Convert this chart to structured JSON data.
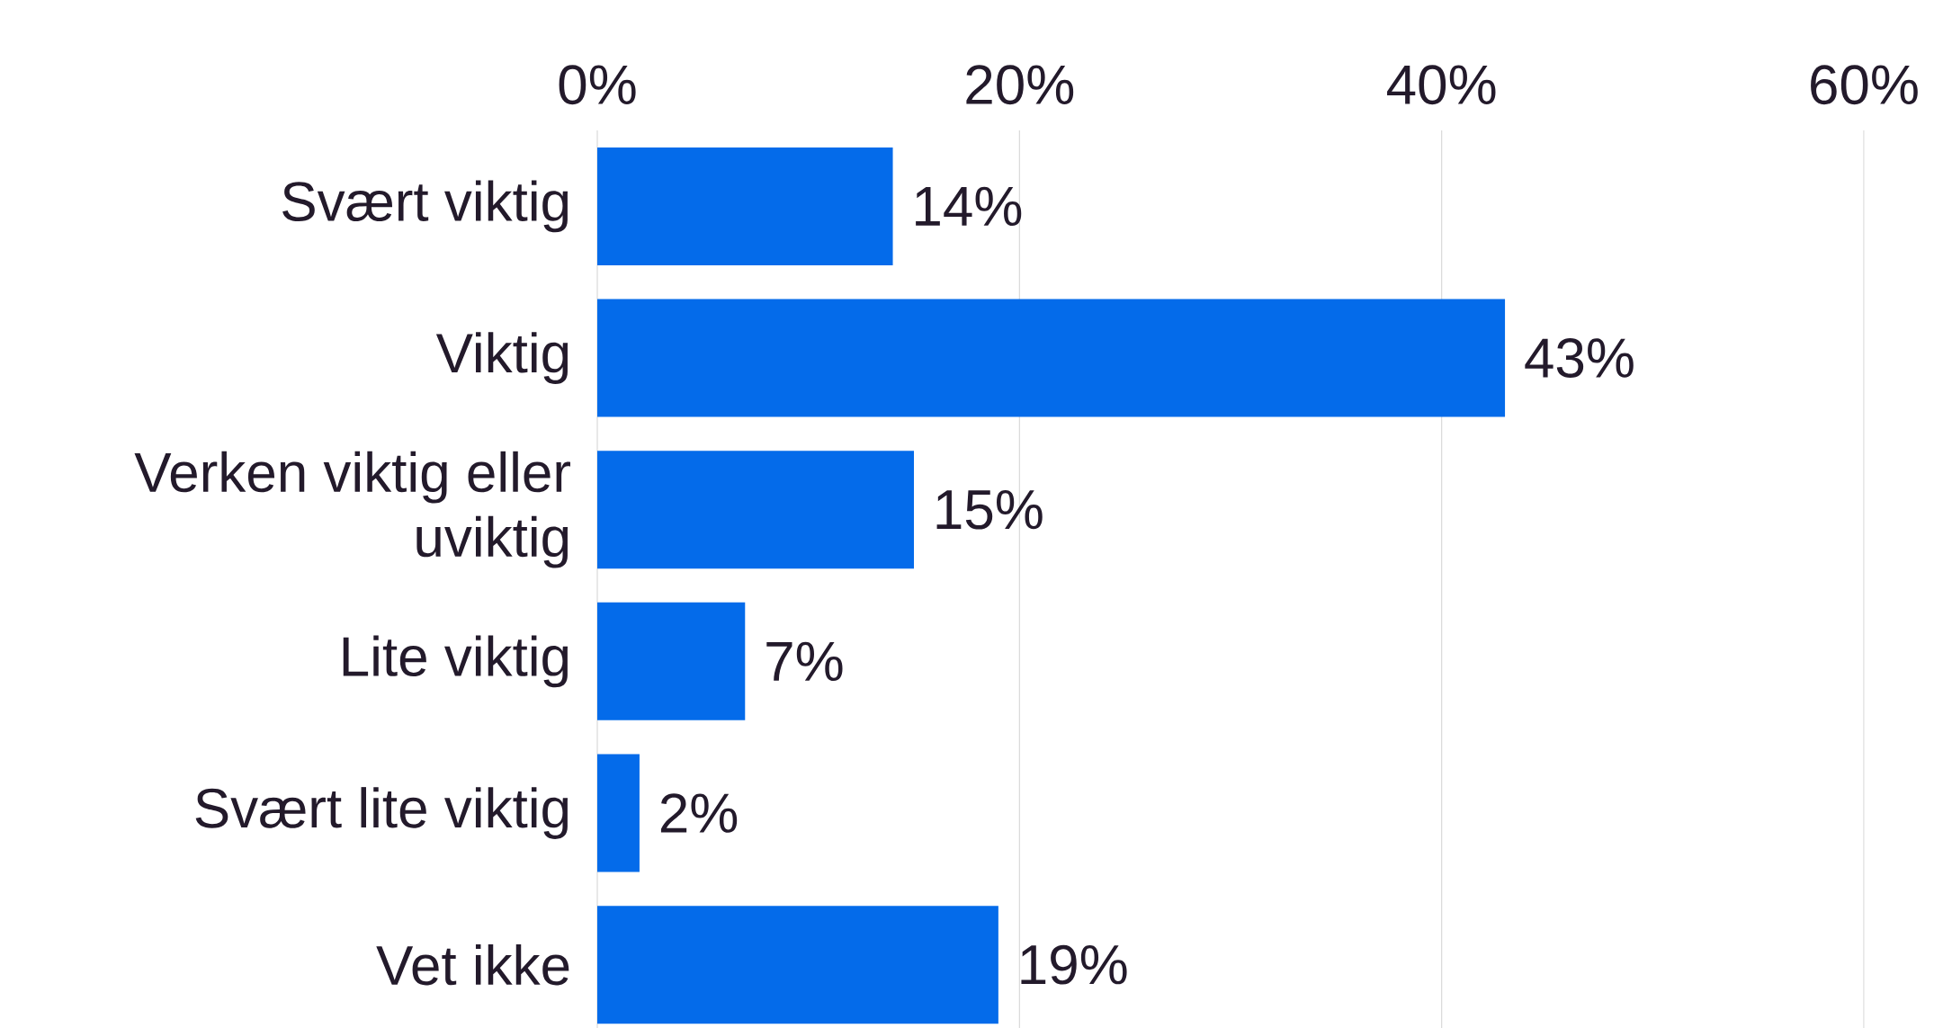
{
  "chart_data": {
    "type": "bar",
    "orientation": "horizontal",
    "categories": [
      "Svært viktig",
      "Viktig",
      "Verken viktig eller uviktig",
      "Lite viktig",
      "Svært lite viktig",
      "Vet ikke"
    ],
    "values": [
      14,
      43,
      15,
      7,
      2,
      19
    ],
    "value_labels": [
      "14%",
      "43%",
      "15%",
      "7%",
      "2%",
      "19%"
    ],
    "color": "#046bea",
    "xlim": [
      0,
      60
    ],
    "xticks": [
      {
        "value": 0,
        "label": "0%"
      },
      {
        "value": 20,
        "label": "20%"
      },
      {
        "value": 40,
        "label": "40%"
      },
      {
        "value": 60,
        "label": "60%"
      }
    ],
    "grid": "x"
  }
}
